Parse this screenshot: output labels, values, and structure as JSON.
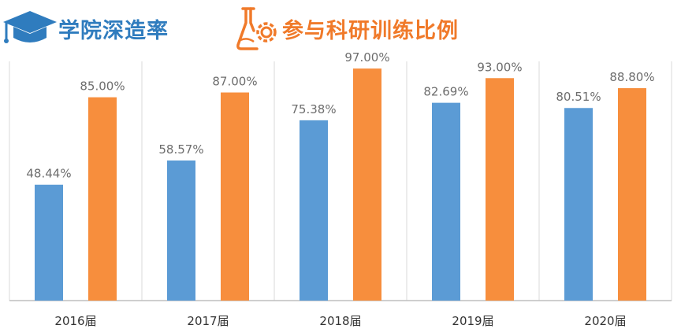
{
  "colors": {
    "series1": "#5b9bd5",
    "series2": "#f78e3d",
    "grid": "#d9d9d9",
    "axis": "#bfbfbf",
    "label": "#6d6d6d"
  },
  "legend": [
    {
      "label": "学院深造率",
      "icon": "graduation-cap-icon",
      "color": "#2f7cbe"
    },
    {
      "label": "参与科研训练比例",
      "icon": "flask-gear-icon",
      "color": "#f07a2a"
    }
  ],
  "chart_data": {
    "type": "bar",
    "categories": [
      "2016届",
      "2017届",
      "2018届",
      "2019届",
      "2020届"
    ],
    "series": [
      {
        "name": "学院深造率",
        "values": [
          48.44,
          58.57,
          75.38,
          82.69,
          80.51
        ],
        "labels": [
          "48.44%",
          "58.57%",
          "75.38%",
          "82.69%",
          "80.51%"
        ]
      },
      {
        "name": "参与科研训练比例",
        "values": [
          85.0,
          87.0,
          97.0,
          93.0,
          88.8
        ],
        "labels": [
          "85.00%",
          "87.00%",
          "97.00%",
          "93.00%",
          "88.80%"
        ]
      }
    ],
    "ylim": [
      0,
      100
    ],
    "grid": true,
    "legend_position": "top"
  }
}
